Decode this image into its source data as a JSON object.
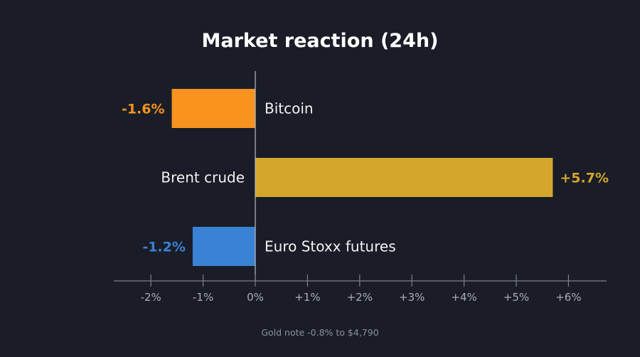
{
  "chart_data": {
    "type": "bar",
    "orientation": "horizontal",
    "title": "Market reaction (24h)",
    "categories": [
      "Bitcoin",
      "Brent crude",
      "Euro Stoxx futures"
    ],
    "values": [
      -1.6,
      5.7,
      -1.2
    ],
    "value_labels": [
      "-1.6%",
      "+5.7%",
      "-1.2%"
    ],
    "colors": [
      "#f7931e",
      "#d4a72c",
      "#3a82d4"
    ],
    "xlim": [
      -2.7,
      6.7
    ],
    "xticks": [
      -2,
      -1,
      0,
      1,
      2,
      3,
      4,
      5,
      6
    ],
    "xtick_labels": [
      "-2%",
      "-1%",
      "0%",
      "+1%",
      "+2%",
      "+3%",
      "+4%",
      "+5%",
      "+6%"
    ],
    "xlabel": "",
    "ylabel": "",
    "grid": false,
    "note": "Gold note -0.8% to $4,790"
  }
}
